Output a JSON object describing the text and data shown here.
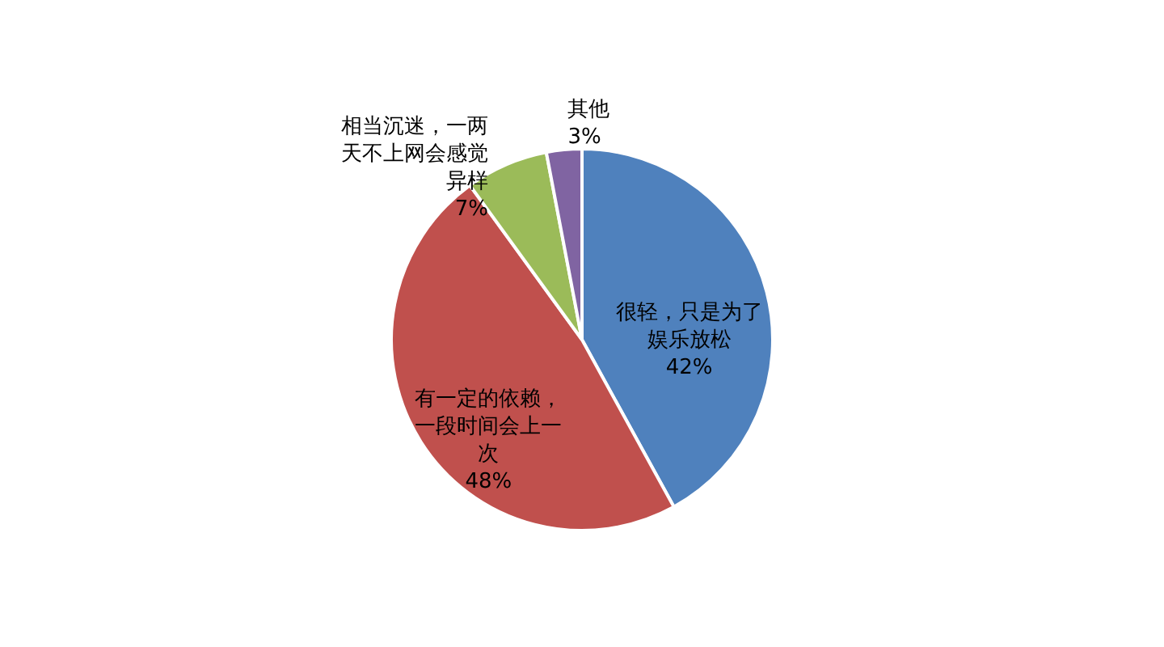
{
  "chart_data": {
    "type": "pie",
    "categories": [
      "很轻，只是为了娱乐放松",
      "有一定的依赖，一段时间会上一次",
      "相当沉迷，一两天不上网会感觉异样",
      "其他"
    ],
    "values": [
      42,
      48,
      7,
      3
    ],
    "value_labels": [
      "42%",
      "48%",
      "7%",
      "3%"
    ],
    "colors": [
      "#4f81bd",
      "#c0504d",
      "#9bbb59",
      "#8064a2"
    ],
    "legend": false
  }
}
